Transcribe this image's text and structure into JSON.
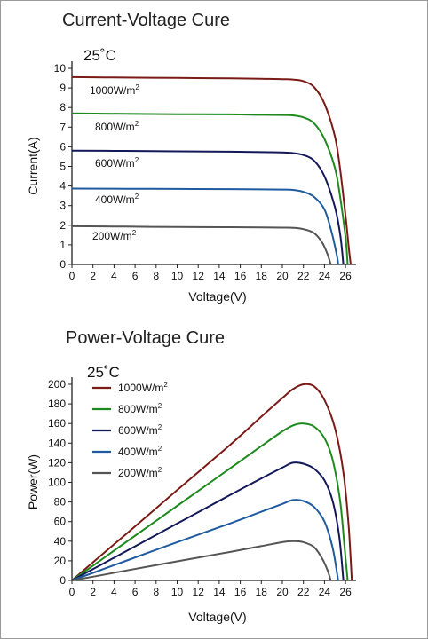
{
  "chart_data": [
    {
      "type": "line",
      "title": "Current-Voltage Cure",
      "annotation": "25˚C",
      "xlabel": "Voltage(V)",
      "ylabel": "Current(A)",
      "xlim": [
        0,
        27
      ],
      "ylim": [
        0,
        10
      ],
      "xticks": [
        "0",
        "2",
        "4",
        "6",
        "8",
        "10",
        "12",
        "14",
        "16",
        "18",
        "20",
        "22",
        "24",
        "26"
      ],
      "yticks": [
        "0",
        "1",
        "2",
        "3",
        "4",
        "5",
        "6",
        "7",
        "8",
        "9",
        "10"
      ],
      "grid": false,
      "series": [
        {
          "name": "1000W/m²",
          "label_base": "1000W/m",
          "color": "#7a1b17",
          "points": [
            [
              0,
              9.55
            ],
            [
              5,
              9.53
            ],
            [
              10,
              9.51
            ],
            [
              15,
              9.49
            ],
            [
              18,
              9.47
            ],
            [
              20,
              9.45
            ],
            [
              21,
              9.43
            ],
            [
              22,
              9.35
            ],
            [
              23,
              9.05
            ],
            [
              24,
              8.2
            ],
            [
              25,
              6.5
            ],
            [
              25.5,
              4.8
            ],
            [
              26,
              2.5
            ],
            [
              26.3,
              0.9
            ],
            [
              26.5,
              0
            ]
          ]
        },
        {
          "name": "800W/m²",
          "label_base": "800W/m",
          "color": "#1e8a1e",
          "points": [
            [
              0,
              7.7
            ],
            [
              5,
              7.68
            ],
            [
              10,
              7.66
            ],
            [
              15,
              7.65
            ],
            [
              18,
              7.63
            ],
            [
              20,
              7.62
            ],
            [
              21,
              7.6
            ],
            [
              22,
              7.5
            ],
            [
              23,
              7.2
            ],
            [
              24,
              6.4
            ],
            [
              25,
              4.9
            ],
            [
              25.5,
              3.4
            ],
            [
              26,
              1.4
            ],
            [
              26.2,
              0
            ]
          ]
        },
        {
          "name": "600W/m²",
          "label_base": "600W/m",
          "color": "#131858",
          "points": [
            [
              0,
              5.8
            ],
            [
              5,
              5.79
            ],
            [
              10,
              5.77
            ],
            [
              15,
              5.75
            ],
            [
              18,
              5.73
            ],
            [
              20,
              5.71
            ],
            [
              21,
              5.68
            ],
            [
              22,
              5.58
            ],
            [
              23,
              5.3
            ],
            [
              24,
              4.5
            ],
            [
              25,
              2.9
            ],
            [
              25.5,
              1.5
            ],
            [
              25.8,
              0
            ]
          ]
        },
        {
          "name": "400W/m²",
          "label_base": "400W/m",
          "color": "#1f5b9e",
          "points": [
            [
              0,
              3.87
            ],
            [
              5,
              3.86
            ],
            [
              10,
              3.85
            ],
            [
              15,
              3.84
            ],
            [
              18,
              3.83
            ],
            [
              20,
              3.82
            ],
            [
              21,
              3.8
            ],
            [
              22,
              3.7
            ],
            [
              23,
              3.45
            ],
            [
              24,
              2.8
            ],
            [
              24.7,
              1.6
            ],
            [
              25.2,
              0.4
            ],
            [
              25.3,
              0
            ]
          ]
        },
        {
          "name": "200W/m²",
          "label_base": "200W/m",
          "color": "#555555",
          "points": [
            [
              0,
              1.95
            ],
            [
              5,
              1.93
            ],
            [
              10,
              1.91
            ],
            [
              15,
              1.9
            ],
            [
              18,
              1.89
            ],
            [
              20,
              1.88
            ],
            [
              21,
              1.87
            ],
            [
              22,
              1.8
            ],
            [
              23,
              1.6
            ],
            [
              23.8,
              1.1
            ],
            [
              24.3,
              0.5
            ],
            [
              24.6,
              0
            ]
          ]
        }
      ]
    },
    {
      "type": "line",
      "title": "Power-Voltage Cure",
      "annotation": "25˚C",
      "xlabel": "Voltage(V)",
      "ylabel": "Power(W)",
      "xlim": [
        0,
        27
      ],
      "ylim": [
        0,
        210
      ],
      "xticks": [
        "0",
        "2",
        "4",
        "6",
        "8",
        "10",
        "12",
        "14",
        "16",
        "18",
        "20",
        "22",
        "24",
        "26"
      ],
      "yticks": [
        "0",
        "20",
        "40",
        "60",
        "80",
        "100",
        "120",
        "140",
        "160",
        "180",
        "200"
      ],
      "legend_position": "top-left",
      "grid": false,
      "series": [
        {
          "name": "1000W/m²",
          "label_base": "1000W/m",
          "color": "#7a1b17",
          "points": [
            [
              0,
              0
            ],
            [
              2,
              18.5
            ],
            [
              5,
              46
            ],
            [
              10,
              92
            ],
            [
              15,
              138
            ],
            [
              18,
              167
            ],
            [
              20,
              186
            ],
            [
              21,
              195
            ],
            [
              22,
              200
            ],
            [
              23,
              198
            ],
            [
              24,
              184
            ],
            [
              25,
              155
            ],
            [
              25.8,
              110
            ],
            [
              26.3,
              55
            ],
            [
              26.6,
              0
            ]
          ]
        },
        {
          "name": "800W/m²",
          "label_base": "800W/m",
          "color": "#1e8a1e",
          "points": [
            [
              0,
              0
            ],
            [
              2,
              15
            ],
            [
              5,
              38
            ],
            [
              10,
              76
            ],
            [
              15,
              114
            ],
            [
              18,
              137
            ],
            [
              20,
              152
            ],
            [
              21,
              158
            ],
            [
              22,
              160
            ],
            [
              23,
              157
            ],
            [
              24,
              145
            ],
            [
              24.8,
              122
            ],
            [
              25.5,
              80
            ],
            [
              25.9,
              35
            ],
            [
              26.2,
              0
            ]
          ]
        },
        {
          "name": "600W/m²",
          "label_base": "600W/m",
          "color": "#131858",
          "points": [
            [
              0,
              0
            ],
            [
              2,
              11.5
            ],
            [
              5,
              29
            ],
            [
              10,
              58
            ],
            [
              15,
              87
            ],
            [
              18,
              104
            ],
            [
              20,
              115
            ],
            [
              21,
              120
            ],
            [
              22,
              119
            ],
            [
              23,
              114
            ],
            [
              24,
              102
            ],
            [
              24.8,
              80
            ],
            [
              25.4,
              45
            ],
            [
              25.8,
              0
            ]
          ]
        },
        {
          "name": "400W/m²",
          "label_base": "400W/m",
          "color": "#1f5b9e",
          "points": [
            [
              0,
              0
            ],
            [
              2,
              7.7
            ],
            [
              5,
              19.5
            ],
            [
              10,
              39
            ],
            [
              15,
              58
            ],
            [
              18,
              70
            ],
            [
              20,
              78
            ],
            [
              21,
              82
            ],
            [
              22,
              81
            ],
            [
              23,
              75
            ],
            [
              24,
              60
            ],
            [
              24.8,
              32
            ],
            [
              25.3,
              0
            ]
          ]
        },
        {
          "name": "200W/m²",
          "label_base": "200W/m",
          "color": "#555555",
          "points": [
            [
              0,
              0
            ],
            [
              2,
              3.8
            ],
            [
              5,
              9.8
            ],
            [
              10,
              19.5
            ],
            [
              15,
              29
            ],
            [
              18,
              35
            ],
            [
              20,
              39
            ],
            [
              21,
              40
            ],
            [
              22,
              39
            ],
            [
              23,
              34
            ],
            [
              23.8,
              22
            ],
            [
              24.3,
              10
            ],
            [
              24.6,
              0
            ]
          ]
        }
      ]
    }
  ]
}
